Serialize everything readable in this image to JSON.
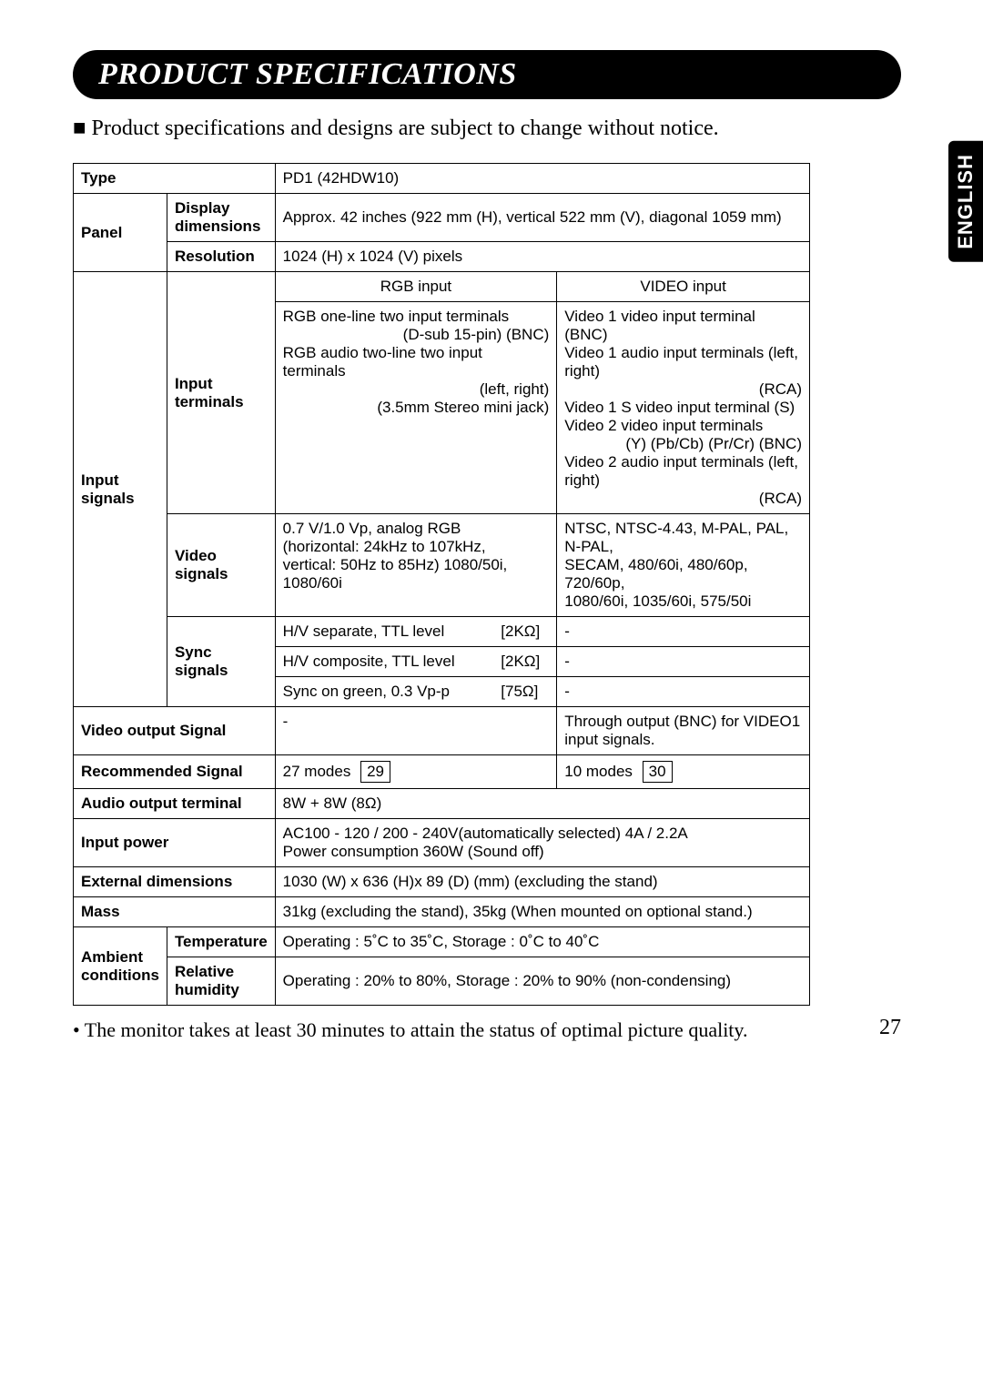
{
  "title": "PRODUCT SPECIFICATIONS",
  "subtitle_bullet": "■",
  "subtitle": "Product specifications and designs are subject to change without notice.",
  "side_tab": "ENGLISH",
  "page_number": "27",
  "footnote": "• The monitor takes at least 30 minutes to attain the status of optimal picture quality.",
  "rows": {
    "type_label": "Type",
    "type_value": "PD1 (42HDW10)",
    "panel_label": "Panel",
    "display_dim_label": "Display dimensions",
    "display_dim_value": "Approx. 42 inches (922 mm (H), vertical 522 mm (V), diagonal 1059 mm)",
    "resolution_label": "Resolution",
    "resolution_value": "1024 (H) x 1024 (V) pixels",
    "input_signals_label": "Input signals",
    "input_terminals_label": "Input terminals",
    "rgb_input_header": "RGB input",
    "video_input_header": "VIDEO input",
    "rgb_terminals_l1": "RGB one-line two input terminals",
    "rgb_terminals_l2": "(D-sub 15-pin) (BNC)",
    "rgb_terminals_l3": "RGB audio two-line two input terminals",
    "rgb_terminals_l4": "(left, right)",
    "rgb_terminals_l5": "(3.5mm Stereo mini jack)",
    "video_terminals_l1": "Video 1 video input terminal (BNC)",
    "video_terminals_l2": "Video 1 audio input terminals (left, right)",
    "video_terminals_l3": "(RCA)",
    "video_terminals_l4": "Video 1 S video input terminal (S)",
    "video_terminals_l5": "Video 2 video input terminals",
    "video_terminals_l6": "(Y) (Pb/Cb) (Pr/Cr) (BNC)",
    "video_terminals_l7": "Video 2 audio input terminals (left, right)",
    "video_terminals_l8": "(RCA)",
    "video_signals_label": "Video signals",
    "video_signals_rgb_l1": "0.7 V/1.0 Vp, analog RGB",
    "video_signals_rgb_l2": "(horizontal: 24kHz to 107kHz,",
    "video_signals_rgb_l3": "vertical: 50Hz to 85Hz) 1080/50i, 1080/60i",
    "video_signals_vid_l1": "NTSC, NTSC-4.43, M-PAL, PAL, N-PAL,",
    "video_signals_vid_l2": "SECAM, 480/60i, 480/60p, 720/60p,",
    "video_signals_vid_l3": "1080/60i, 1035/60i, 575/50i",
    "sync_label": "Sync signals",
    "sync_r1_a": "H/V separate, TTL level",
    "sync_r1_b": "[2KΩ]",
    "sync_r1_c": "-",
    "sync_r2_a": "H/V composite, TTL level",
    "sync_r2_b": "[2KΩ]",
    "sync_r2_c": "-",
    "sync_r3_a": "Sync on green, 0.3 Vp-p",
    "sync_r3_b": "[75Ω]",
    "sync_r3_c": "-",
    "video_out_label": "Video output Signal",
    "video_out_rgb": "-",
    "video_out_vid": "Through output (BNC) for VIDEO1 input signals.",
    "rec_signal_label": "Recommended Signal",
    "rec_signal_rgb": "27 modes",
    "rec_signal_rgb_box": "29",
    "rec_signal_vid": "10 modes",
    "rec_signal_vid_box": "30",
    "audio_out_label": "Audio output terminal",
    "audio_out_value": "8W + 8W (8Ω)",
    "input_power_label": "Input power",
    "input_power_l1": "AC100 - 120 / 200 - 240V(automatically selected) 4A / 2.2A",
    "input_power_l2": "Power consumption 360W (Sound off)",
    "ext_dim_label": "External dimensions",
    "ext_dim_value": "1030 (W) x 636 (H)x 89 (D) (mm) (excluding the stand)",
    "mass_label": "Mass",
    "mass_value": "31kg (excluding the stand), 35kg (When mounted on optional stand.)",
    "ambient_label": "Ambient conditions",
    "temp_label": "Temperature",
    "temp_value": "Operating : 5˚C to 35˚C, Storage : 0˚C to 40˚C",
    "humidity_label": "Relative humidity",
    "humidity_value": "Operating : 20% to 80%, Storage : 20% to 90% (non-condensing)"
  }
}
